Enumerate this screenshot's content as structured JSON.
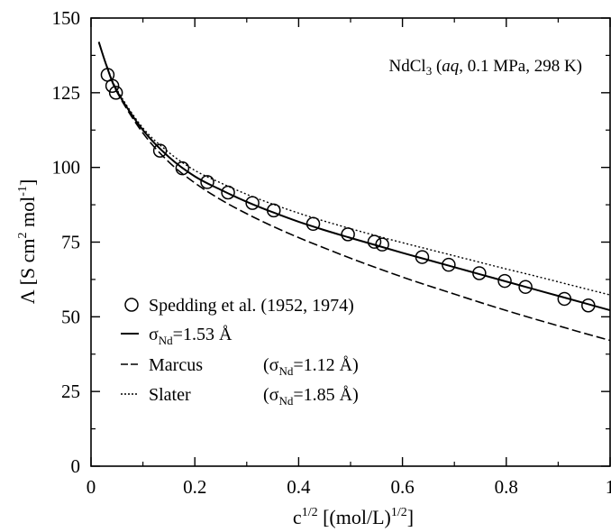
{
  "chart_data": {
    "type": "line",
    "annotation": {
      "formula": "NdCl",
      "formula_sub": "3",
      "open": " (",
      "italic": "aq",
      "rest": ", 0.1 MPa, 298 K)"
    },
    "xlabel": {
      "base": "c",
      "sup": "1/2",
      "mid": " [(mol/L)",
      "sup2": "1/2",
      "end": "]"
    },
    "ylabel": {
      "base": "Λ [S cm",
      "sup": "2",
      "mid": " mol",
      "sup2": "-1",
      "end": "]"
    },
    "xlim": [
      0,
      1
    ],
    "ylim": [
      0,
      150
    ],
    "x_ticks": [
      "0",
      "0.2",
      "0.4",
      "0.6",
      "0.8",
      "1"
    ],
    "y_ticks": [
      "0",
      "25",
      "50",
      "75",
      "100",
      "125",
      "150"
    ],
    "grid": false,
    "legend_position": "lower-left",
    "series": [
      {
        "name": "Spedding et al. (1952, 1974)",
        "style": "markers",
        "marker": "open-circle",
        "x": [
          0.032,
          0.041,
          0.048,
          0.133,
          0.176,
          0.224,
          0.264,
          0.311,
          0.352,
          0.428,
          0.495,
          0.546,
          0.561,
          0.638,
          0.689,
          0.748,
          0.797,
          0.837,
          0.912,
          0.958
        ],
        "y": [
          131.0,
          127.3,
          125.0,
          105.6,
          99.7,
          95.1,
          91.6,
          88.1,
          85.6,
          81.1,
          77.6,
          75.1,
          74.2,
          70.0,
          67.4,
          64.6,
          62.0,
          60.0,
          56.0,
          53.8
        ]
      },
      {
        "name_base": "σ",
        "name_sub": "Nd",
        "name_rest": "=1.53 Å",
        "style": "solid",
        "x": [
          0.015,
          0.03,
          0.05,
          0.1,
          0.15,
          0.2,
          0.25,
          0.3,
          0.35,
          0.4,
          0.45,
          0.5,
          0.55,
          0.6,
          0.65,
          0.7,
          0.75,
          0.8,
          0.85,
          0.9,
          0.95,
          1.0
        ],
        "y": [
          142.0,
          134.0,
          125.5,
          112.5,
          103.5,
          97.0,
          92.5,
          88.5,
          85.0,
          81.8,
          79.0,
          76.4,
          73.9,
          71.4,
          69.0,
          66.6,
          64.2,
          61.8,
          59.4,
          57.0,
          54.6,
          52.2
        ]
      },
      {
        "name": "Marcus",
        "name_paren_base": "(σ",
        "name_paren_sub": "Nd",
        "name_paren_rest": "=1.12 Å)",
        "style": "dashed",
        "x": [
          0.015,
          0.03,
          0.05,
          0.1,
          0.15,
          0.2,
          0.25,
          0.3,
          0.35,
          0.4,
          0.45,
          0.5,
          0.55,
          0.6,
          0.65,
          0.7,
          0.75,
          0.8,
          0.85,
          0.9,
          0.95,
          1.0
        ],
        "y": [
          142.0,
          134.0,
          125.2,
          111.5,
          101.8,
          94.8,
          89.2,
          84.5,
          80.3,
          76.5,
          73.0,
          69.6,
          66.4,
          63.3,
          60.4,
          57.6,
          54.8,
          52.1,
          49.5,
          47.0,
          44.5,
          42.1
        ]
      },
      {
        "name": "Slater",
        "name_paren_base": "(σ",
        "name_paren_sub": "Nd",
        "name_paren_rest": "=1.85 Å)",
        "style": "dotted",
        "x": [
          0.015,
          0.03,
          0.05,
          0.1,
          0.15,
          0.2,
          0.25,
          0.3,
          0.35,
          0.4,
          0.45,
          0.5,
          0.55,
          0.6,
          0.65,
          0.7,
          0.75,
          0.8,
          0.85,
          0.9,
          0.95,
          1.0
        ],
        "y": [
          142.0,
          134.2,
          126.0,
          113.2,
          105.0,
          99.0,
          94.8,
          91.0,
          87.7,
          84.7,
          82.0,
          79.5,
          77.1,
          74.8,
          72.6,
          70.4,
          68.2,
          66.0,
          63.9,
          61.7,
          59.5,
          57.3
        ]
      }
    ]
  }
}
